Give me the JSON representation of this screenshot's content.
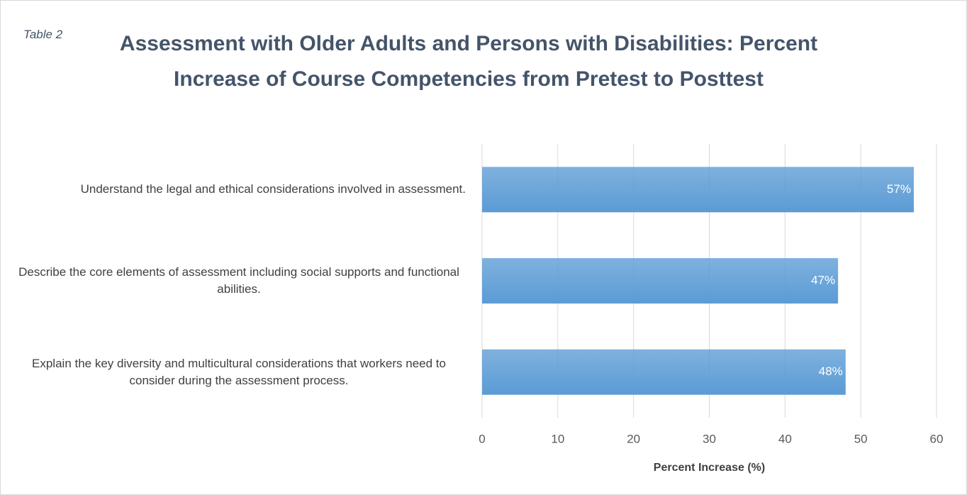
{
  "chart_data": {
    "type": "bar",
    "orientation": "horizontal",
    "title": "Assessment with Older Adults and Persons with Disabilities: Percent Increase of Course Competencies from Pretest to Posttest",
    "annotation": "Table 2",
    "x_label": "Percent Increase (%)",
    "categories": [
      "Understand the legal and ethical considerations involved in assessment.",
      "Describe the core elements of assessment including social supports and functional abilities.",
      "Explain the key diversity and multicultural considerations that workers need to consider during the assessment process."
    ],
    "values": [
      57,
      47,
      48
    ],
    "value_labels": [
      "57%",
      "47%",
      "48%"
    ],
    "color": "#5b9bd5",
    "xlim": [
      0,
      60
    ],
    "xticks": [
      0,
      10,
      20,
      30,
      40,
      50,
      60
    ],
    "grid": true
  }
}
